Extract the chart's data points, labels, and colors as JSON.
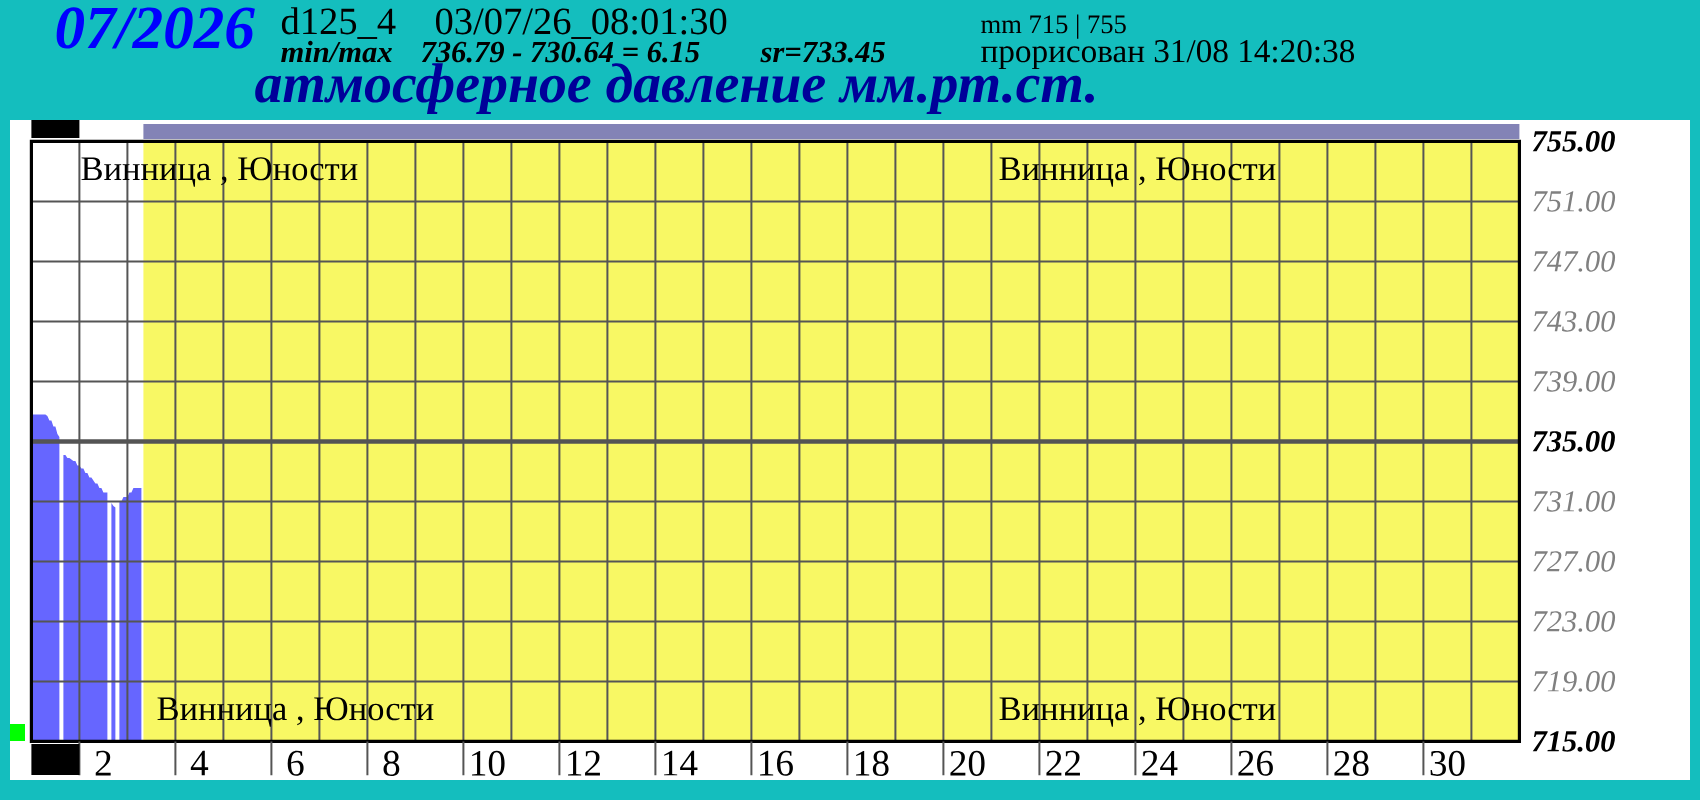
{
  "chart_data": {
    "type": "area",
    "title": "07/2026",
    "subtitle": "атмосферное давление мм.рт.ст.",
    "annotations": [
      "d125_4",
      "03/07/26_08:01:30",
      "min/max",
      "736.79 - 730.64 = 6.15",
      "sr=733.45",
      "mm 715 | 755",
      "прорисован 31/08 14:20:38",
      "Винница , Юности",
      "Винница , Юности",
      "Винница , Юности",
      "Винница , Юности"
    ],
    "x": [
      "2026-07-01T00:00",
      "2026-07-01T01:00",
      "2026-07-01T02:00",
      "2026-07-01T03:00",
      "2026-07-01T04:00",
      "2026-07-01T05:00",
      "2026-07-01T06:00",
      "2026-07-01T07:00",
      "2026-07-01T08:00",
      "2026-07-01T09:00",
      "2026-07-01T10:00",
      "2026-07-01T11:00",
      "2026-07-01T12:00",
      "2026-07-01T13:00",
      "2026-07-01T14:00",
      "2026-07-01T15:00",
      "2026-07-01T16:00",
      "2026-07-01T17:00",
      "2026-07-01T18:00",
      "2026-07-01T19:00",
      "2026-07-01T20:00",
      "2026-07-01T21:00",
      "2026-07-01T22:00",
      "2026-07-01T23:00",
      "2026-07-02T00:00",
      "2026-07-02T01:00",
      "2026-07-02T02:00",
      "2026-07-02T03:00",
      "2026-07-02T04:00",
      "2026-07-02T05:00",
      "2026-07-02T06:00",
      "2026-07-02T07:00",
      "2026-07-02T08:00",
      "2026-07-02T09:00",
      "2026-07-02T10:00",
      "2026-07-02T11:00",
      "2026-07-02T12:00",
      "2026-07-02T13:00",
      "2026-07-02T14:00",
      "2026-07-02T15:00",
      "2026-07-02T16:00",
      "2026-07-02T17:00",
      "2026-07-02T18:00",
      "2026-07-02T19:00",
      "2026-07-02T20:00",
      "2026-07-02T21:00",
      "2026-07-02T22:00",
      "2026-07-02T23:00",
      "2026-07-03T00:00",
      "2026-07-03T01:00",
      "2026-07-03T02:00",
      "2026-07-03T03:00",
      "2026-07-03T04:00",
      "2026-07-03T05:00",
      "2026-07-03T06:00",
      "2026-07-03T07:00"
    ],
    "values": [
      736.8,
      736.8,
      736.8,
      736.8,
      736.8,
      736.8,
      736.8,
      736.8,
      736.7,
      736.4,
      736.4,
      736.0,
      736.0,
      735.5,
      735.3,
      null,
      734.1,
      734.1,
      733.9,
      733.9,
      733.8,
      733.7,
      733.7,
      733.4,
      733.4,
      733.2,
      733.2,
      732.9,
      732.9,
      732.6,
      732.6,
      732.4,
      732.2,
      732.2,
      731.9,
      731.9,
      731.6,
      731.6,
      731.6,
      null,
      730.9,
      730.7,
      730.6,
      null,
      731.0,
      731.0,
      731.3,
      731.3,
      731.3,
      731.6,
      731.6,
      731.9,
      731.9,
      731.9,
      731.9,
      731.9
    ],
    "color": "#6666ff",
    "xlim": [
      "2026-07-01T00:00",
      "2026-08-01T00:00"
    ],
    "xticks": [
      {
        "value": "2026-07-02",
        "label": null
      },
      {
        "value": "2026-07-02T12:00",
        "label": "2"
      },
      {
        "value": "2026-07-04",
        "label": null
      },
      {
        "value": "2026-07-04T12:00",
        "label": "4"
      },
      {
        "value": "2026-07-06",
        "label": null
      },
      {
        "value": "2026-07-06T12:00",
        "label": "6"
      },
      {
        "value": "2026-07-08",
        "label": null
      },
      {
        "value": "2026-07-08T12:00",
        "label": "8"
      },
      {
        "value": "2026-07-10",
        "label": null
      },
      {
        "value": "2026-07-10T12:00",
        "label": "10"
      },
      {
        "value": "2026-07-12",
        "label": null
      },
      {
        "value": "2026-07-12T12:00",
        "label": "12"
      },
      {
        "value": "2026-07-14",
        "label": null
      },
      {
        "value": "2026-07-14T12:00",
        "label": "14"
      },
      {
        "value": "2026-07-16",
        "label": null
      },
      {
        "value": "2026-07-16T12:00",
        "label": "16"
      },
      {
        "value": "2026-07-18",
        "label": null
      },
      {
        "value": "2026-07-18T12:00",
        "label": "18"
      },
      {
        "value": "2026-07-20",
        "label": null
      },
      {
        "value": "2026-07-20T12:00",
        "label": "20"
      },
      {
        "value": "2026-07-22",
        "label": null
      },
      {
        "value": "2026-07-22T12:00",
        "label": "22"
      },
      {
        "value": "2026-07-24",
        "label": null
      },
      {
        "value": "2026-07-24T12:00",
        "label": "24"
      },
      {
        "value": "2026-07-26",
        "label": null
      },
      {
        "value": "2026-07-26T12:00",
        "label": "26"
      },
      {
        "value": "2026-07-28",
        "label": null
      },
      {
        "value": "2026-07-28T12:00",
        "label": "28"
      },
      {
        "value": "2026-07-30",
        "label": null
      },
      {
        "value": "2026-07-30T12:00",
        "label": "30"
      }
    ],
    "ylim": [
      715,
      755
    ],
    "yticks": [
      {
        "value": 715,
        "label": "715.00"
      },
      {
        "value": 719,
        "label": "719.00"
      },
      {
        "value": 723,
        "label": "723.00"
      },
      {
        "value": 727,
        "label": "727.00"
      },
      {
        "value": 731,
        "label": "731.00"
      },
      {
        "value": 735,
        "label": "735.00"
      },
      {
        "value": 739,
        "label": "739.00"
      },
      {
        "value": 743,
        "label": "743.00"
      },
      {
        "value": 747,
        "label": "747.00"
      },
      {
        "value": 751,
        "label": "751.00"
      },
      {
        "value": 755,
        "label": "755.00"
      }
    ],
    "grid": "y",
    "ref_lines": [
      {
        "axis": "x",
        "value": "2026-07-02"
      },
      {
        "axis": "x",
        "value": "2026-07-03"
      },
      {
        "axis": "x",
        "value": "2026-07-04"
      },
      {
        "axis": "x",
        "value": "2026-07-05"
      },
      {
        "axis": "x",
        "value": "2026-07-06"
      },
      {
        "axis": "x",
        "value": "2026-07-07"
      },
      {
        "axis": "x",
        "value": "2026-07-08"
      },
      {
        "axis": "x",
        "value": "2026-07-09"
      },
      {
        "axis": "x",
        "value": "2026-07-10"
      },
      {
        "axis": "x",
        "value": "2026-07-11"
      },
      {
        "axis": "x",
        "value": "2026-07-12"
      },
      {
        "axis": "x",
        "value": "2026-07-13"
      },
      {
        "axis": "x",
        "value": "2026-07-14"
      },
      {
        "axis": "x",
        "value": "2026-07-15"
      },
      {
        "axis": "x",
        "value": "2026-07-16"
      },
      {
        "axis": "x",
        "value": "2026-07-17"
      },
      {
        "axis": "x",
        "value": "2026-07-18"
      },
      {
        "axis": "x",
        "value": "2026-07-19"
      },
      {
        "axis": "x",
        "value": "2026-07-20"
      },
      {
        "axis": "x",
        "value": "2026-07-21"
      },
      {
        "axis": "x",
        "value": "2026-07-22"
      },
      {
        "axis": "x",
        "value": "2026-07-23"
      },
      {
        "axis": "x",
        "value": "2026-07-24"
      },
      {
        "axis": "x",
        "value": "2026-07-25"
      },
      {
        "axis": "x",
        "value": "2026-07-26"
      },
      {
        "axis": "x",
        "value": "2026-07-27"
      },
      {
        "axis": "x",
        "value": "2026-07-28"
      },
      {
        "axis": "x",
        "value": "2026-07-29"
      },
      {
        "axis": "x",
        "value": "2026-07-30"
      },
      {
        "axis": "x",
        "value": "2026-07-31"
      },
      {
        "axis": "y",
        "value": 735
      }
    ],
    "bands": [
      {
        "axis": "x",
        "from": "2026-07-01T00:00",
        "to": "2026-07-03T08:00",
        "color": "#ffffff"
      }
    ]
  }
}
